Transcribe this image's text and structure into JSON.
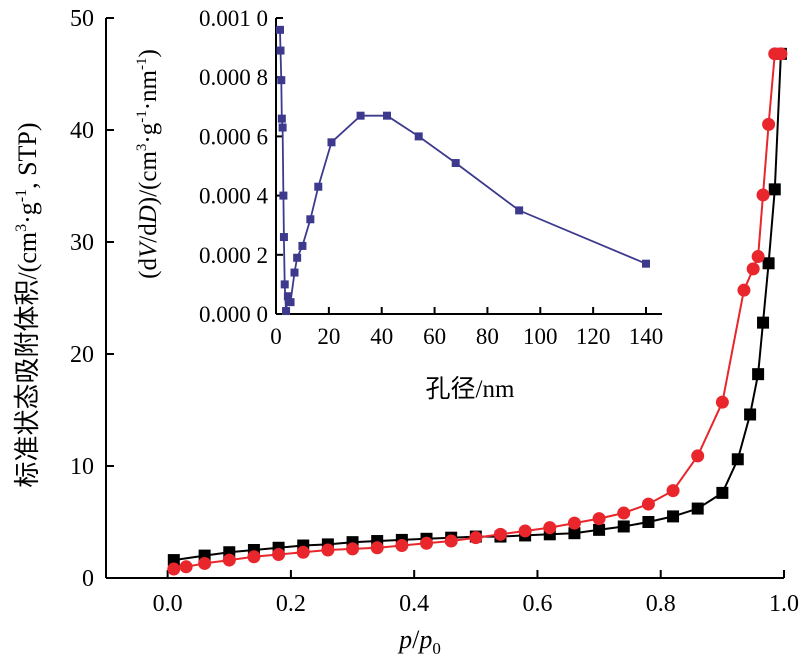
{
  "colors": {
    "adsorption": "#000000",
    "desorption": "#e8262b",
    "pore": "#3d3a8e"
  },
  "chart_data": [
    {
      "type": "line",
      "xlabel": "p/p0",
      "ylabel": "标准状态吸附体积/(cm3·g-1, STP)",
      "xlim": [
        -0.1,
        1.0
      ],
      "ylim": [
        0,
        50
      ],
      "xticks": [
        "0.0",
        "0.2",
        "0.4",
        "0.6",
        "0.8",
        "1.0"
      ],
      "yticks": [
        "0",
        "10",
        "20",
        "30",
        "40",
        "50"
      ],
      "grid": false,
      "series": [
        {
          "marker": "square",
          "x": [
            0.01,
            0.06,
            0.1,
            0.14,
            0.18,
            0.22,
            0.26,
            0.3,
            0.34,
            0.38,
            0.42,
            0.46,
            0.5,
            0.54,
            0.58,
            0.62,
            0.66,
            0.7,
            0.74,
            0.78,
            0.82,
            0.86,
            0.9,
            0.925,
            0.945,
            0.958,
            0.966,
            0.975,
            0.985,
            0.995
          ],
          "y": [
            1.6,
            2.0,
            2.3,
            2.5,
            2.7,
            2.9,
            3.0,
            3.2,
            3.3,
            3.4,
            3.5,
            3.6,
            3.7,
            3.7,
            3.8,
            3.9,
            4.0,
            4.3,
            4.6,
            5.0,
            5.5,
            6.2,
            7.6,
            10.6,
            14.6,
            18.2,
            22.8,
            28.1,
            34.7,
            46.8
          ]
        },
        {
          "marker": "circle",
          "x": [
            0.01,
            0.03,
            0.06,
            0.1,
            0.14,
            0.18,
            0.22,
            0.26,
            0.3,
            0.34,
            0.38,
            0.42,
            0.46,
            0.5,
            0.54,
            0.58,
            0.62,
            0.66,
            0.7,
            0.74,
            0.78,
            0.82,
            0.86,
            0.9,
            0.935,
            0.95,
            0.958,
            0.966,
            0.975,
            0.985,
            0.995
          ],
          "y": [
            0.8,
            1.0,
            1.3,
            1.6,
            1.9,
            2.1,
            2.3,
            2.5,
            2.6,
            2.7,
            2.9,
            3.1,
            3.3,
            3.6,
            3.9,
            4.2,
            4.5,
            4.9,
            5.3,
            5.8,
            6.6,
            7.8,
            10.9,
            15.7,
            25.7,
            27.6,
            28.7,
            34.2,
            40.5,
            46.8,
            46.8
          ]
        }
      ]
    },
    {
      "type": "line",
      "xlabel": "孔径/nm",
      "ylabel": "(dV/dD)/(cm3·g-1·nm-1)",
      "xlim": [
        0,
        140
      ],
      "ylim": [
        0,
        0.001
      ],
      "xticks": [
        "0",
        "20",
        "40",
        "60",
        "80",
        "100",
        "120",
        "140"
      ],
      "yticks": [
        "0.000 0",
        "0.000 2",
        "0.000 4",
        "0.000 6",
        "0.000 8",
        "0.001 0"
      ],
      "grid": false,
      "series": [
        {
          "marker": "square",
          "x": [
            1.5,
            1.7,
            2.0,
            2.2,
            2.5,
            2.8,
            3.0,
            3.3,
            3.8,
            4.5,
            5.5,
            7.0,
            8.0,
            10.0,
            13.0,
            16.0,
            21.0,
            32.0,
            42.0,
            54.0,
            68.0,
            92.0,
            140.0
          ],
          "y": [
            0.00096,
            0.00089,
            0.00079,
            0.00066,
            0.00063,
            0.0004,
            0.00026,
            0.0001,
            1e-05,
            6e-05,
            4e-05,
            0.00014,
            0.00019,
            0.00023,
            0.00032,
            0.00043,
            0.00058,
            0.00067,
            0.00067,
            0.0006,
            0.00051,
            0.00035,
            0.00017
          ]
        }
      ]
    }
  ]
}
